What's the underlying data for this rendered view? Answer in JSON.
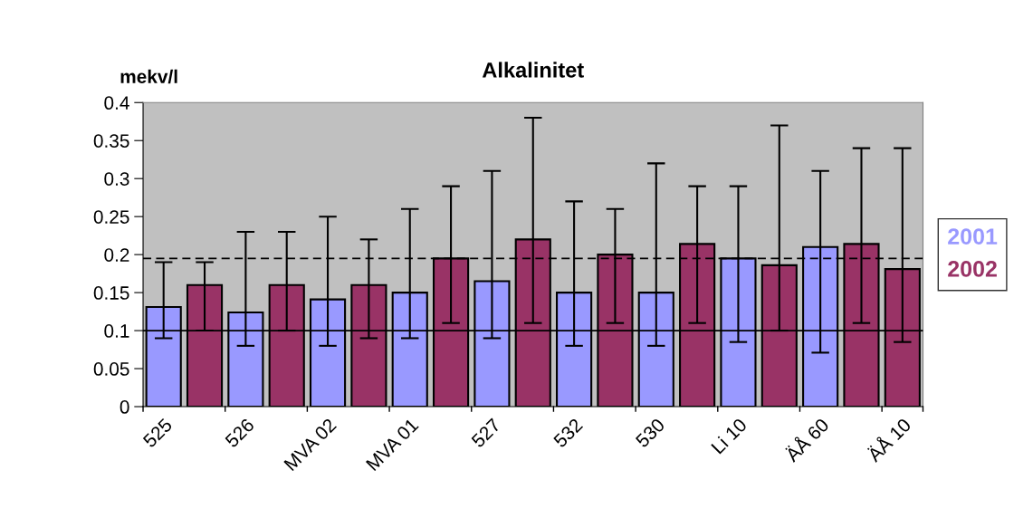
{
  "chart_data": {
    "type": "bar",
    "title": "Alkalinitet",
    "ylabel": "mekv/l",
    "categories": [
      "525",
      null,
      "526",
      null,
      "MVA 02",
      null,
      "MVA 01",
      null,
      "527",
      null,
      "532",
      null,
      "530",
      null,
      "Li 10",
      null,
      "ÄÅ 60",
      null,
      "ÄÅ 10"
    ],
    "series": [
      {
        "name": "2001",
        "color": "#9999ff",
        "values": [
          0.131,
          null,
          0.124,
          null,
          0.141,
          null,
          0.15,
          null,
          0.165,
          null,
          0.15,
          null,
          0.15,
          null,
          0.195,
          null,
          0.21,
          null,
          null
        ],
        "errors": [
          [
            0.09,
            0.19
          ],
          null,
          [
            0.08,
            0.23
          ],
          null,
          [
            0.08,
            0.25
          ],
          null,
          [
            0.09,
            0.26
          ],
          null,
          [
            0.09,
            0.31
          ],
          null,
          [
            0.08,
            0.27
          ],
          null,
          [
            0.08,
            0.32
          ],
          null,
          [
            0.085,
            0.29
          ],
          null,
          [
            0.071,
            0.31
          ],
          null,
          null
        ]
      },
      {
        "name": "2002",
        "color": "#993366",
        "values": [
          null,
          0.16,
          null,
          0.16,
          null,
          0.16,
          null,
          0.195,
          null,
          0.22,
          null,
          0.2,
          null,
          0.214,
          null,
          0.186,
          null,
          0.214,
          0.181
        ],
        "errors": [
          null,
          [
            0.1,
            0.19
          ],
          null,
          [
            0.1,
            0.23
          ],
          null,
          [
            0.09,
            0.22
          ],
          null,
          [
            0.11,
            0.29
          ],
          null,
          [
            0.11,
            0.38
          ],
          null,
          [
            0.11,
            0.26
          ],
          null,
          [
            0.11,
            0.29
          ],
          null,
          [
            0.1,
            0.37
          ],
          null,
          [
            0.11,
            0.34
          ],
          [
            0.085,
            0.34
          ]
        ]
      }
    ],
    "ylim": [
      0,
      0.4
    ],
    "yticks": [
      0,
      0.05,
      0.1,
      0.15,
      0.2,
      0.25,
      0.3,
      0.35,
      0.4
    ],
    "ref_lines": [
      {
        "axis": "y",
        "value": 0.1,
        "color": "#000000",
        "line_style": "solid"
      },
      {
        "axis": "y",
        "value": 0.195,
        "color": "#000000",
        "line_style": "dashed"
      }
    ],
    "grid": false,
    "legend": "right"
  }
}
